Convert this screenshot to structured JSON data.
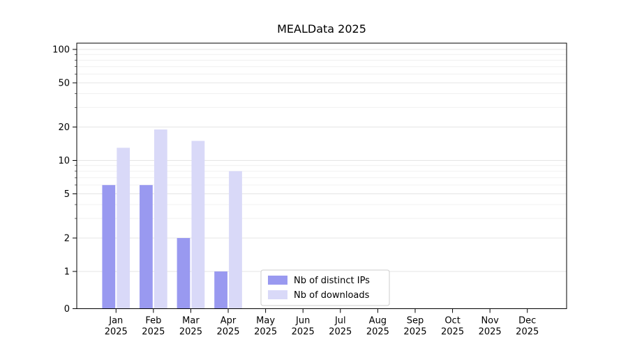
{
  "page": {
    "background": "#ffffff"
  },
  "chart_data": {
    "type": "bar",
    "title": "MEALData 2025",
    "categories": [
      "Jan",
      "Feb",
      "Mar",
      "Apr",
      "May",
      "Jun",
      "Jul",
      "Aug",
      "Sep",
      "Oct",
      "Nov",
      "Dec"
    ],
    "year_label": "2025",
    "series": [
      {
        "name": "Nb of distinct IPs",
        "color": "#9999f0",
        "values": [
          6,
          6,
          2,
          1,
          0,
          0,
          0,
          0,
          0,
          0,
          0,
          0
        ]
      },
      {
        "name": "Nb of downloads",
        "color": "#d9d9f8",
        "values": [
          13,
          19,
          15,
          8,
          0,
          0,
          0,
          0,
          0,
          0,
          0,
          0
        ]
      }
    ],
    "yticks": [
      0,
      1,
      2,
      5,
      10,
      20,
      50,
      100
    ],
    "ylim": [
      0,
      100
    ],
    "yscale": "symlog",
    "grid": "horizontal",
    "minor_gridlines": [
      3,
      4,
      6,
      7,
      8,
      9,
      30,
      40,
      60,
      70,
      80,
      90
    ],
    "legend_position": "lower-center-inside"
  }
}
